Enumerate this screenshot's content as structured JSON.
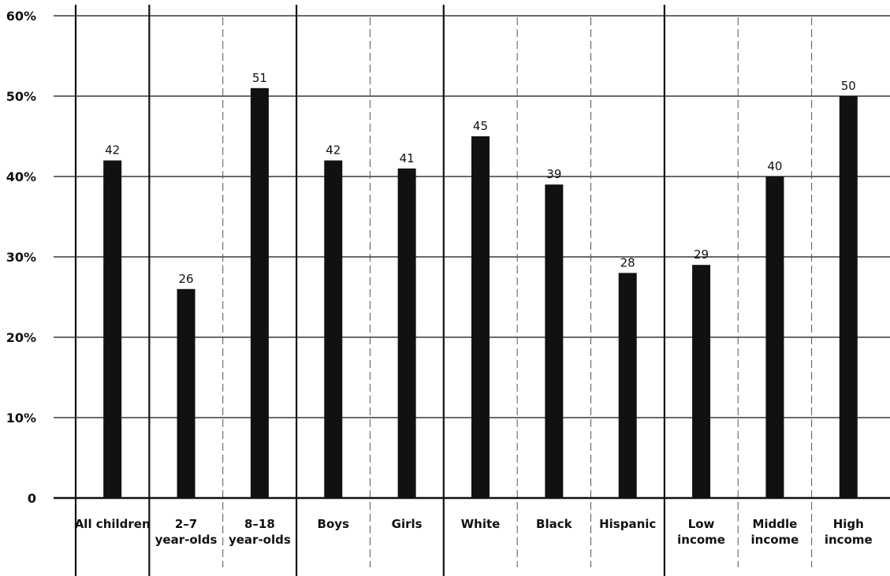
{
  "chart_data": {
    "type": "bar",
    "categories": [
      [
        "All children"
      ],
      [
        "2–7",
        "year-olds"
      ],
      [
        "8–18",
        "year-olds"
      ],
      [
        "Boys"
      ],
      [
        "Girls"
      ],
      [
        "White"
      ],
      [
        "Black"
      ],
      [
        "Hispanic"
      ],
      [
        "Low",
        "income"
      ],
      [
        "Middle",
        "income"
      ],
      [
        "High",
        "income"
      ]
    ],
    "values": [
      42,
      26,
      51,
      42,
      41,
      45,
      39,
      28,
      29,
      40,
      50
    ],
    "value_labels": [
      "42",
      "26",
      "51",
      "42",
      "41",
      "45",
      "39",
      "28",
      "29",
      "40",
      "50"
    ],
    "ylim": [
      0,
      60
    ],
    "yticks": [
      {
        "value": 0,
        "label": "0"
      },
      {
        "value": 10,
        "label": "10%"
      },
      {
        "value": 20,
        "label": "20%"
      },
      {
        "value": 30,
        "label": "30%"
      },
      {
        "value": 40,
        "label": "40%"
      },
      {
        "value": 50,
        "label": "50%"
      },
      {
        "value": 60,
        "label": "60%"
      }
    ],
    "groups": [
      [
        0
      ],
      [
        1,
        2
      ],
      [
        3,
        4
      ],
      [
        5,
        6,
        7
      ],
      [
        8,
        9,
        10
      ]
    ],
    "grid": true,
    "bar_color": "#111111",
    "line_color": "#111111"
  }
}
